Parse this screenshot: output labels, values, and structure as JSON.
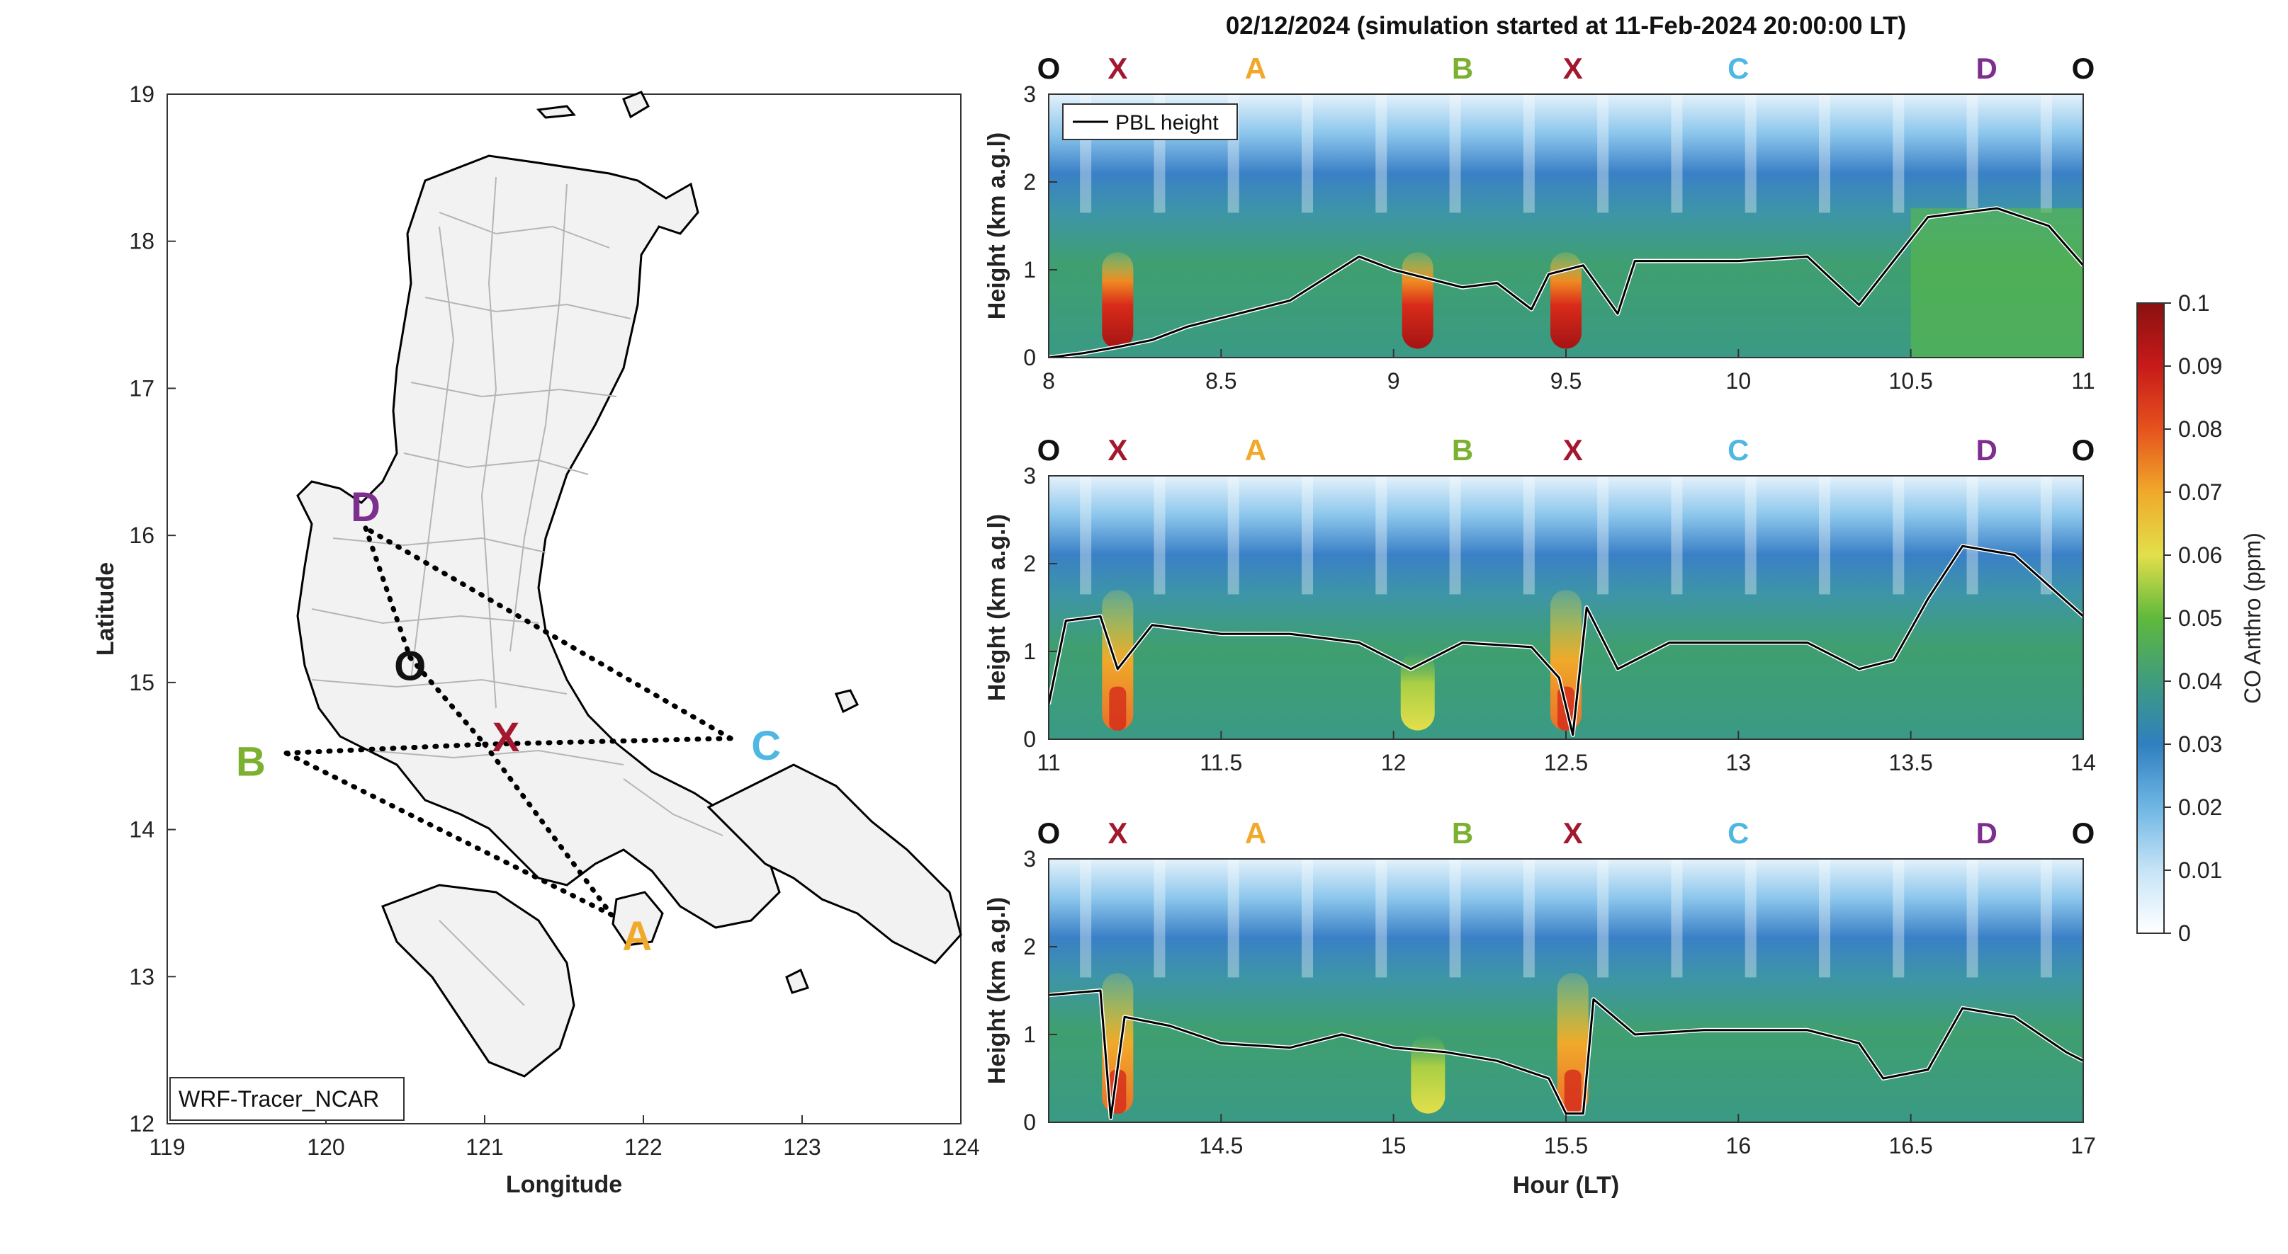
{
  "figure": {
    "title": "02/12/2024 (simulation started at 11-Feb-2024 20:00:00 LT)",
    "model_label": "WRF-Tracer_NCAR"
  },
  "colors": {
    "O": "#111111",
    "X": "#a3182f",
    "A": "#f0a92a",
    "B": "#7bb030",
    "C": "#4fb7e3",
    "D": "#7d2f8e",
    "pbl": "#000000",
    "land": "#bbbbbb",
    "coast": "#000000"
  },
  "chart_data": [
    {
      "type": "map",
      "xlabel": "Longitude",
      "ylabel": "Latitude",
      "xlim": [
        119,
        124
      ],
      "ylim": [
        12,
        19
      ],
      "xticks": [
        "119",
        "120",
        "121",
        "122",
        "123",
        "124"
      ],
      "yticks": [
        "12",
        "13",
        "14",
        "15",
        "16",
        "17",
        "18",
        "19"
      ],
      "points": [
        {
          "name": "D",
          "lon": 120.25,
          "lat": 16.05
        },
        {
          "name": "O",
          "lon": 120.53,
          "lat": 15.17
        },
        {
          "name": "X",
          "lon": 121.0,
          "lat": 14.58
        },
        {
          "name": "B",
          "lon": 119.75,
          "lat": 14.52
        },
        {
          "name": "C",
          "lon": 122.55,
          "lat": 14.62
        },
        {
          "name": "A",
          "lon": 121.8,
          "lat": 13.42
        }
      ],
      "route": [
        "O",
        "X",
        "A",
        "B",
        "X",
        "C",
        "D",
        "O"
      ]
    },
    {
      "type": "heatmap",
      "xlim": [
        8,
        11
      ],
      "ylim": [
        0,
        3
      ],
      "xticks": [
        "8",
        "8.5",
        "9",
        "9.5",
        "10",
        "10.5",
        "11"
      ],
      "yticks": [
        "0",
        "1",
        "2",
        "3"
      ],
      "ylabel": "Height (km a.g.l)",
      "xlabel": "",
      "legend": "PBL height",
      "route_labels": [
        "O",
        "X",
        "A",
        "B",
        "X",
        "C",
        "D",
        "O"
      ],
      "route_times": [
        8,
        8.2,
        8.6,
        9.2,
        9.52,
        10.0,
        10.72,
        11.0
      ],
      "pbl_height": [
        [
          8,
          0
        ],
        [
          8.1,
          0.05
        ],
        [
          8.2,
          0.12
        ],
        [
          8.3,
          0.2
        ],
        [
          8.4,
          0.35
        ],
        [
          8.5,
          0.45
        ],
        [
          8.6,
          0.55
        ],
        [
          8.7,
          0.65
        ],
        [
          8.8,
          0.9
        ],
        [
          8.9,
          1.15
        ],
        [
          9.0,
          1.0
        ],
        [
          9.1,
          0.9
        ],
        [
          9.2,
          0.8
        ],
        [
          9.3,
          0.85
        ],
        [
          9.4,
          0.55
        ],
        [
          9.45,
          0.95
        ],
        [
          9.55,
          1.05
        ],
        [
          9.65,
          0.5
        ],
        [
          9.7,
          1.1
        ],
        [
          9.8,
          1.1
        ],
        [
          10.0,
          1.1
        ],
        [
          10.2,
          1.15
        ],
        [
          10.35,
          0.6
        ],
        [
          10.45,
          1.1
        ],
        [
          10.55,
          1.6
        ],
        [
          10.75,
          1.7
        ],
        [
          10.9,
          1.5
        ],
        [
          11.0,
          1.05
        ]
      ],
      "high_co_times": [
        8.2,
        9.07,
        9.5
      ]
    },
    {
      "type": "heatmap",
      "xlim": [
        11,
        14
      ],
      "ylim": [
        0,
        3
      ],
      "xticks": [
        "11",
        "11.5",
        "12",
        "12.5",
        "13",
        "13.5",
        "14"
      ],
      "yticks": [
        "0",
        "1",
        "2",
        "3"
      ],
      "ylabel": "Height (km a.g.l)",
      "xlabel": "",
      "route_labels": [
        "O",
        "X",
        "A",
        "B",
        "X",
        "C",
        "D",
        "O"
      ],
      "route_times": [
        11,
        11.2,
        11.6,
        12.2,
        12.52,
        13.0,
        13.72,
        14.0
      ],
      "pbl_height": [
        [
          11,
          0.4
        ],
        [
          11.05,
          1.35
        ],
        [
          11.15,
          1.4
        ],
        [
          11.2,
          0.8
        ],
        [
          11.3,
          1.3
        ],
        [
          11.5,
          1.2
        ],
        [
          11.7,
          1.2
        ],
        [
          11.9,
          1.1
        ],
        [
          12.05,
          0.8
        ],
        [
          12.2,
          1.1
        ],
        [
          12.4,
          1.05
        ],
        [
          12.48,
          0.7
        ],
        [
          12.52,
          0.05
        ],
        [
          12.56,
          1.5
        ],
        [
          12.65,
          0.8
        ],
        [
          12.8,
          1.1
        ],
        [
          13.0,
          1.1
        ],
        [
          13.2,
          1.1
        ],
        [
          13.35,
          0.8
        ],
        [
          13.45,
          0.9
        ],
        [
          13.55,
          1.6
        ],
        [
          13.65,
          2.2
        ],
        [
          13.8,
          2.1
        ],
        [
          14.0,
          1.4
        ]
      ],
      "high_co_times": [
        11.2,
        12.07,
        12.5
      ]
    },
    {
      "type": "heatmap",
      "xlim": [
        14,
        17
      ],
      "ylim": [
        0,
        3
      ],
      "xticks": [
        "14.5",
        "15",
        "15.5",
        "16",
        "16.5",
        "17"
      ],
      "yticks": [
        "0",
        "1",
        "2",
        "3"
      ],
      "ylabel": "Height (km a.g.l)",
      "xlabel": "Hour (LT)",
      "route_labels": [
        "O",
        "X",
        "A",
        "B",
        "X",
        "C",
        "D",
        "O"
      ],
      "route_times": [
        14,
        14.2,
        14.6,
        15.2,
        15.52,
        16.0,
        16.72,
        17.0
      ],
      "pbl_height": [
        [
          14,
          1.45
        ],
        [
          14.15,
          1.5
        ],
        [
          14.18,
          0.05
        ],
        [
          14.22,
          1.2
        ],
        [
          14.35,
          1.1
        ],
        [
          14.5,
          0.9
        ],
        [
          14.7,
          0.85
        ],
        [
          14.85,
          1.0
        ],
        [
          15.0,
          0.85
        ],
        [
          15.15,
          0.8
        ],
        [
          15.3,
          0.7
        ],
        [
          15.45,
          0.5
        ],
        [
          15.5,
          0.1
        ],
        [
          15.55,
          0.1
        ],
        [
          15.58,
          1.4
        ],
        [
          15.7,
          1.0
        ],
        [
          15.9,
          1.05
        ],
        [
          16.2,
          1.05
        ],
        [
          16.35,
          0.9
        ],
        [
          16.42,
          0.5
        ],
        [
          16.55,
          0.6
        ],
        [
          16.65,
          1.3
        ],
        [
          16.8,
          1.2
        ],
        [
          16.95,
          0.8
        ],
        [
          17.0,
          0.7
        ]
      ],
      "high_co_times": [
        14.2,
        15.1,
        15.52
      ]
    },
    {
      "type": "colorbar",
      "label": "CO Anthro (ppm)",
      "range": [
        0,
        0.1
      ],
      "ticks": [
        "0",
        "0.01",
        "0.02",
        "0.03",
        "0.04",
        "0.05",
        "0.06",
        "0.07",
        "0.08",
        "0.09",
        "0.1"
      ]
    }
  ]
}
